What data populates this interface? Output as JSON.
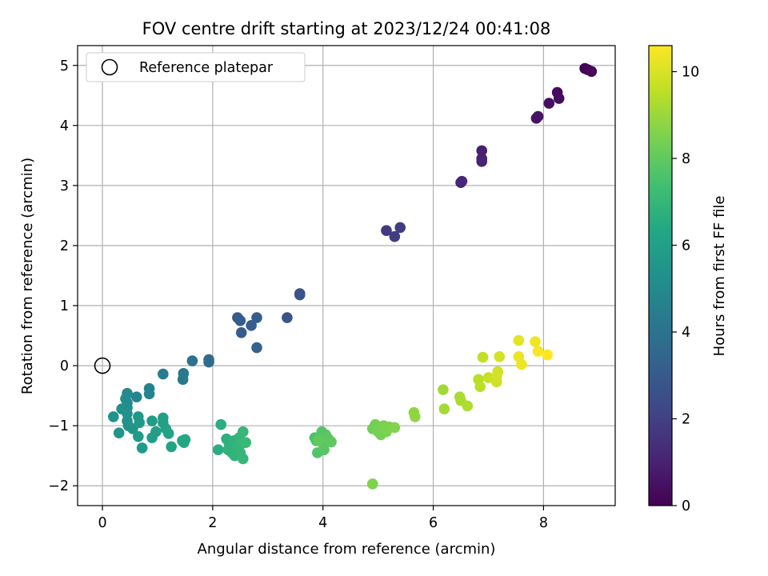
{
  "chart_data": {
    "type": "scatter",
    "title": "FOV centre drift starting at 2023/12/24 00:41:08",
    "xlabel": "Angular distance from reference (arcmin)",
    "ylabel": "Rotation from reference (arcmin)",
    "xlim": [
      -0.45,
      9.3
    ],
    "ylim": [
      -2.33,
      5.33
    ],
    "xticks": [
      0,
      2,
      4,
      6,
      8
    ],
    "yticks": [
      -2,
      -1,
      0,
      1,
      2,
      3,
      4,
      5
    ],
    "grid": true,
    "legend": {
      "placement": "top-left",
      "entries": [
        "Reference platepar"
      ]
    },
    "reference_point": {
      "x": 0,
      "y": 0,
      "label": "Reference platepar"
    },
    "colorbar": {
      "label": "Hours from first FF file",
      "range": [
        0,
        10.6
      ],
      "ticks": [
        0,
        2,
        4,
        6,
        8,
        10
      ],
      "colormap": "viridis"
    },
    "points": [
      {
        "x": 8.75,
        "y": 4.95,
        "c": 0.0
      },
      {
        "x": 8.8,
        "y": 4.93,
        "c": 0.1
      },
      {
        "x": 8.87,
        "y": 4.9,
        "c": 0.2
      },
      {
        "x": 8.25,
        "y": 4.55,
        "c": 0.3
      },
      {
        "x": 8.28,
        "y": 4.45,
        "c": 0.35
      },
      {
        "x": 8.1,
        "y": 4.37,
        "c": 0.4
      },
      {
        "x": 7.9,
        "y": 4.15,
        "c": 0.5
      },
      {
        "x": 7.87,
        "y": 4.12,
        "c": 0.55
      },
      {
        "x": 6.88,
        "y": 3.58,
        "c": 0.9
      },
      {
        "x": 6.88,
        "y": 3.45,
        "c": 0.95
      },
      {
        "x": 6.88,
        "y": 3.4,
        "c": 1.0
      },
      {
        "x": 6.5,
        "y": 3.05,
        "c": 1.1
      },
      {
        "x": 6.52,
        "y": 3.07,
        "c": 1.15
      },
      {
        "x": 5.15,
        "y": 2.25,
        "c": 1.8
      },
      {
        "x": 5.3,
        "y": 2.15,
        "c": 1.85
      },
      {
        "x": 5.4,
        "y": 2.3,
        "c": 1.9
      },
      {
        "x": 3.58,
        "y": 1.18,
        "c": 2.6
      },
      {
        "x": 3.58,
        "y": 1.2,
        "c": 2.65
      },
      {
        "x": 3.35,
        "y": 0.8,
        "c": 2.8
      },
      {
        "x": 2.45,
        "y": 0.8,
        "c": 3.0
      },
      {
        "x": 2.5,
        "y": 0.75,
        "c": 3.05
      },
      {
        "x": 2.52,
        "y": 0.55,
        "c": 3.1
      },
      {
        "x": 2.7,
        "y": 0.67,
        "c": 3.1
      },
      {
        "x": 2.8,
        "y": 0.8,
        "c": 3.15
      },
      {
        "x": 2.8,
        "y": 0.3,
        "c": 3.3
      },
      {
        "x": 1.93,
        "y": 0.1,
        "c": 3.7
      },
      {
        "x": 1.93,
        "y": 0.06,
        "c": 3.75
      },
      {
        "x": 1.63,
        "y": 0.08,
        "c": 3.9
      },
      {
        "x": 1.47,
        "y": -0.13,
        "c": 4.2
      },
      {
        "x": 1.46,
        "y": -0.23,
        "c": 4.3
      },
      {
        "x": 1.1,
        "y": -0.14,
        "c": 4.4
      },
      {
        "x": 0.85,
        "y": -0.38,
        "c": 4.6
      },
      {
        "x": 0.85,
        "y": -0.47,
        "c": 4.7
      },
      {
        "x": 0.62,
        "y": -0.52,
        "c": 4.8
      },
      {
        "x": 0.45,
        "y": -0.46,
        "c": 4.9
      },
      {
        "x": 0.42,
        "y": -0.55,
        "c": 5.0
      },
      {
        "x": 0.45,
        "y": -0.62,
        "c": 5.05
      },
      {
        "x": 0.45,
        "y": -0.7,
        "c": 5.1
      },
      {
        "x": 0.35,
        "y": -0.72,
        "c": 5.2
      },
      {
        "x": 0.45,
        "y": -0.8,
        "c": 5.3
      },
      {
        "x": 0.2,
        "y": -0.85,
        "c": 5.35
      },
      {
        "x": 0.45,
        "y": -0.92,
        "c": 5.4
      },
      {
        "x": 0.47,
        "y": -1.0,
        "c": 5.45
      },
      {
        "x": 0.55,
        "y": -1.05,
        "c": 5.5
      },
      {
        "x": 0.3,
        "y": -1.12,
        "c": 5.55
      },
      {
        "x": 0.65,
        "y": -0.85,
        "c": 5.6
      },
      {
        "x": 0.67,
        "y": -0.95,
        "c": 5.65
      },
      {
        "x": 0.65,
        "y": -1.18,
        "c": 5.7
      },
      {
        "x": 0.72,
        "y": -1.37,
        "c": 5.75
      },
      {
        "x": 0.9,
        "y": -0.92,
        "c": 5.8
      },
      {
        "x": 0.9,
        "y": -1.2,
        "c": 5.85
      },
      {
        "x": 0.97,
        "y": -1.1,
        "c": 5.9
      },
      {
        "x": 1.1,
        "y": -0.87,
        "c": 5.95
      },
      {
        "x": 1.1,
        "y": -0.95,
        "c": 6.0
      },
      {
        "x": 1.15,
        "y": -1.05,
        "c": 6.05
      },
      {
        "x": 1.2,
        "y": -1.13,
        "c": 6.1
      },
      {
        "x": 1.25,
        "y": -1.35,
        "c": 6.15
      },
      {
        "x": 1.45,
        "y": -1.25,
        "c": 6.2
      },
      {
        "x": 1.48,
        "y": -1.28,
        "c": 6.25
      },
      {
        "x": 1.5,
        "y": -1.23,
        "c": 6.3
      },
      {
        "x": 2.15,
        "y": -0.98,
        "c": 6.6
      },
      {
        "x": 2.1,
        "y": -1.4,
        "c": 6.65
      },
      {
        "x": 2.25,
        "y": -1.22,
        "c": 6.7
      },
      {
        "x": 2.3,
        "y": -1.3,
        "c": 6.7
      },
      {
        "x": 2.28,
        "y": -1.4,
        "c": 6.75
      },
      {
        "x": 2.35,
        "y": -1.45,
        "c": 6.8
      },
      {
        "x": 2.38,
        "y": -1.25,
        "c": 6.8
      },
      {
        "x": 2.4,
        "y": -1.5,
        "c": 6.85
      },
      {
        "x": 2.45,
        "y": -1.35,
        "c": 6.9
      },
      {
        "x": 2.48,
        "y": -1.2,
        "c": 6.9
      },
      {
        "x": 2.5,
        "y": -1.45,
        "c": 6.95
      },
      {
        "x": 2.52,
        "y": -1.3,
        "c": 7.0
      },
      {
        "x": 2.55,
        "y": -1.1,
        "c": 7.0
      },
      {
        "x": 2.55,
        "y": -1.55,
        "c": 7.05
      },
      {
        "x": 2.6,
        "y": -1.28,
        "c": 7.1
      },
      {
        "x": 3.85,
        "y": -1.2,
        "c": 7.6
      },
      {
        "x": 3.88,
        "y": -1.25,
        "c": 7.65
      },
      {
        "x": 3.9,
        "y": -1.45,
        "c": 7.7
      },
      {
        "x": 3.95,
        "y": -1.17,
        "c": 7.7
      },
      {
        "x": 3.98,
        "y": -1.1,
        "c": 7.75
      },
      {
        "x": 4.0,
        "y": -1.3,
        "c": 7.8
      },
      {
        "x": 4.02,
        "y": -1.4,
        "c": 7.85
      },
      {
        "x": 4.05,
        "y": -1.15,
        "c": 7.85
      },
      {
        "x": 4.1,
        "y": -1.22,
        "c": 7.9
      },
      {
        "x": 4.15,
        "y": -1.27,
        "c": 7.95
      },
      {
        "x": 3.92,
        "y": -1.25,
        "c": 8.0
      },
      {
        "x": 4.9,
        "y": -1.05,
        "c": 8.3
      },
      {
        "x": 4.95,
        "y": -0.98,
        "c": 8.35
      },
      {
        "x": 5.0,
        "y": -1.1,
        "c": 8.4
      },
      {
        "x": 5.05,
        "y": -1.15,
        "c": 8.4
      },
      {
        "x": 5.1,
        "y": -1.0,
        "c": 8.45
      },
      {
        "x": 5.12,
        "y": -1.05,
        "c": 8.5
      },
      {
        "x": 5.15,
        "y": -1.1,
        "c": 8.5
      },
      {
        "x": 5.2,
        "y": -1.02,
        "c": 8.55
      },
      {
        "x": 5.3,
        "y": -1.03,
        "c": 8.6
      },
      {
        "x": 4.9,
        "y": -1.97,
        "c": 8.55
      },
      {
        "x": 5.65,
        "y": -0.78,
        "c": 8.8
      },
      {
        "x": 5.67,
        "y": -0.85,
        "c": 8.85
      },
      {
        "x": 6.18,
        "y": -0.4,
        "c": 9.1
      },
      {
        "x": 6.2,
        "y": -0.72,
        "c": 9.15
      },
      {
        "x": 6.48,
        "y": -0.52,
        "c": 9.2
      },
      {
        "x": 6.5,
        "y": -0.58,
        "c": 9.25
      },
      {
        "x": 6.62,
        "y": -0.67,
        "c": 9.3
      },
      {
        "x": 6.82,
        "y": -0.23,
        "c": 9.5
      },
      {
        "x": 6.85,
        "y": -0.35,
        "c": 9.55
      },
      {
        "x": 6.9,
        "y": 0.14,
        "c": 9.6
      },
      {
        "x": 7.0,
        "y": -0.2,
        "c": 9.7
      },
      {
        "x": 7.15,
        "y": -0.27,
        "c": 9.8
      },
      {
        "x": 7.17,
        "y": -0.1,
        "c": 9.85
      },
      {
        "x": 7.2,
        "y": 0.15,
        "c": 9.9
      },
      {
        "x": 7.15,
        "y": -0.18,
        "c": 9.9
      },
      {
        "x": 7.55,
        "y": 0.42,
        "c": 10.2
      },
      {
        "x": 7.55,
        "y": 0.15,
        "c": 10.3
      },
      {
        "x": 7.6,
        "y": 0.02,
        "c": 10.35
      },
      {
        "x": 7.85,
        "y": 0.4,
        "c": 10.4
      },
      {
        "x": 7.9,
        "y": 0.24,
        "c": 10.5
      },
      {
        "x": 8.07,
        "y": 0.18,
        "c": 10.6
      }
    ]
  }
}
